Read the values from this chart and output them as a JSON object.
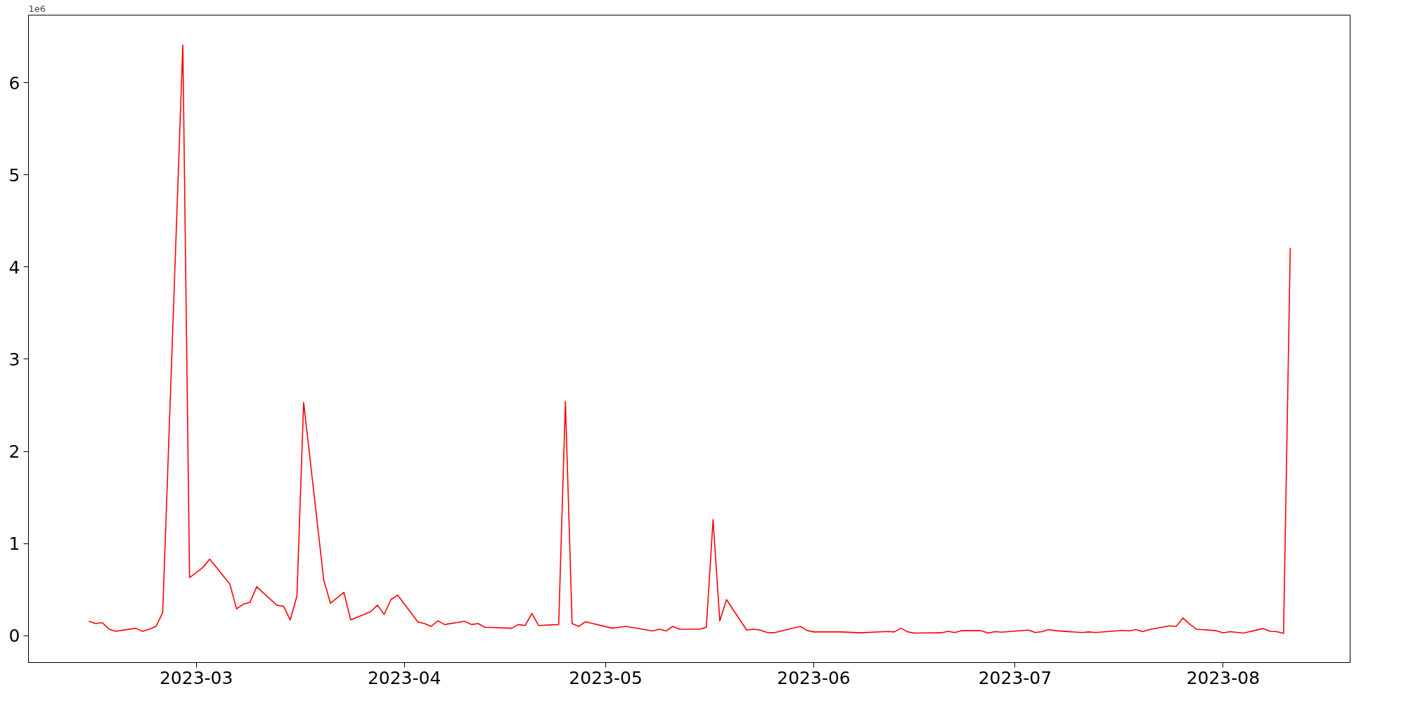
{
  "chart_data": {
    "type": "line",
    "x": [
      "2023-02-13",
      "2023-02-14",
      "2023-02-15",
      "2023-02-16",
      "2023-02-17",
      "2023-02-20",
      "2023-02-21",
      "2023-02-22",
      "2023-02-23",
      "2023-02-24",
      "2023-02-27",
      "2023-02-28",
      "2023-03-02",
      "2023-03-03",
      "2023-03-06",
      "2023-03-07",
      "2023-03-08",
      "2023-03-09",
      "2023-03-10",
      "2023-03-13",
      "2023-03-14",
      "2023-03-15",
      "2023-03-16",
      "2023-03-17",
      "2023-03-20",
      "2023-03-21",
      "2023-03-23",
      "2023-03-24",
      "2023-03-27",
      "2023-03-28",
      "2023-03-29",
      "2023-03-30",
      "2023-03-31",
      "2023-04-03",
      "2023-04-04",
      "2023-04-05",
      "2023-04-06",
      "2023-04-07",
      "2023-04-10",
      "2023-04-11",
      "2023-04-12",
      "2023-04-13",
      "2023-04-17",
      "2023-04-18",
      "2023-04-19",
      "2023-04-20",
      "2023-04-21",
      "2023-04-24",
      "2023-04-25",
      "2023-04-26",
      "2023-04-27",
      "2023-04-28",
      "2023-05-02",
      "2023-05-03",
      "2023-05-04",
      "2023-05-08",
      "2023-05-09",
      "2023-05-10",
      "2023-05-11",
      "2023-05-12",
      "2023-05-15",
      "2023-05-16",
      "2023-05-17",
      "2023-05-18",
      "2023-05-19",
      "2023-05-22",
      "2023-05-23",
      "2023-05-24",
      "2023-05-25",
      "2023-05-26",
      "2023-05-30",
      "2023-05-31",
      "2023-06-01",
      "2023-06-02",
      "2023-06-05",
      "2023-06-08",
      "2023-06-12",
      "2023-06-13",
      "2023-06-14",
      "2023-06-15",
      "2023-06-16",
      "2023-06-20",
      "2023-06-21",
      "2023-06-22",
      "2023-06-23",
      "2023-06-26",
      "2023-06-27",
      "2023-06-28",
      "2023-06-29",
      "2023-07-03",
      "2023-07-04",
      "2023-07-05",
      "2023-07-06",
      "2023-07-07",
      "2023-07-11",
      "2023-07-12",
      "2023-07-13",
      "2023-07-17",
      "2023-07-18",
      "2023-07-19",
      "2023-07-20",
      "2023-07-21",
      "2023-07-24",
      "2023-07-25",
      "2023-07-26",
      "2023-07-27",
      "2023-07-28",
      "2023-07-31",
      "2023-08-01",
      "2023-08-02",
      "2023-08-04",
      "2023-08-07",
      "2023-08-08",
      "2023-08-09",
      "2023-08-10",
      "2023-08-11"
    ],
    "series": [
      {
        "color": "#ff0000",
        "values": [
          0.155,
          0.13,
          0.14,
          0.07,
          0.047,
          0.08,
          0.047,
          0.07,
          0.1,
          0.25,
          6.41,
          0.63,
          0.74,
          0.83,
          0.56,
          0.29,
          0.34,
          0.36,
          0.53,
          0.33,
          0.32,
          0.17,
          0.43,
          2.53,
          0.6,
          0.35,
          0.47,
          0.17,
          0.26,
          0.33,
          0.23,
          0.39,
          0.44,
          0.15,
          0.13,
          0.1,
          0.16,
          0.12,
          0.155,
          0.12,
          0.13,
          0.09,
          0.08,
          0.12,
          0.11,
          0.24,
          0.11,
          0.12,
          2.54,
          0.13,
          0.1,
          0.15,
          0.08,
          0.09,
          0.1,
          0.05,
          0.07,
          0.05,
          0.1,
          0.07,
          0.07,
          0.09,
          1.26,
          0.16,
          0.39,
          0.06,
          0.07,
          0.06,
          0.035,
          0.03,
          0.1,
          0.055,
          0.04,
          0.04,
          0.04,
          0.03,
          0.045,
          0.04,
          0.08,
          0.04,
          0.027,
          0.03,
          0.047,
          0.033,
          0.053,
          0.053,
          0.027,
          0.043,
          0.037,
          0.06,
          0.033,
          0.043,
          0.066,
          0.053,
          0.033,
          0.04,
          0.033,
          0.056,
          0.05,
          0.066,
          0.043,
          0.066,
          0.106,
          0.1,
          0.19,
          0.126,
          0.07,
          0.053,
          0.03,
          0.043,
          0.027,
          0.076,
          0.047,
          0.043,
          0.023,
          4.21
        ]
      }
    ],
    "xlim": [
      "2023-02-04",
      "2023-08-19T22:00"
    ],
    "ylim": [
      -0.293,
      6.735
    ],
    "xticks": [
      {
        "value": "2023-03-01",
        "label": "2023-03"
      },
      {
        "value": "2023-04-01",
        "label": "2023-04"
      },
      {
        "value": "2023-05-01",
        "label": "2023-05"
      },
      {
        "value": "2023-06-01",
        "label": "2023-06"
      },
      {
        "value": "2023-07-01",
        "label": "2023-07"
      },
      {
        "value": "2023-08-01",
        "label": "2023-08"
      }
    ],
    "yticks": [
      0,
      1,
      2,
      3,
      4,
      5,
      6
    ],
    "annotations": [
      "1e6"
    ]
  }
}
